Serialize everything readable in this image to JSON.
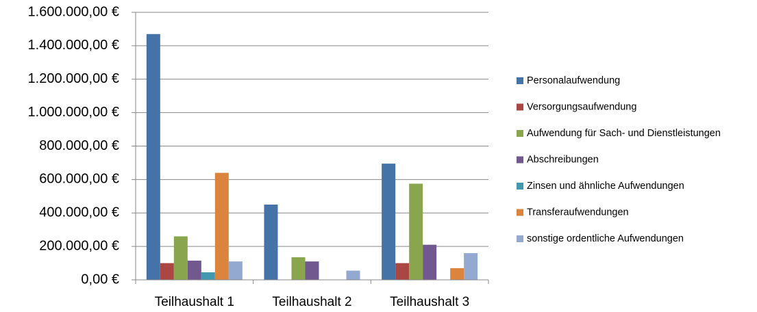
{
  "chart_data": {
    "type": "bar",
    "categories": [
      "Teilhaushalt 1",
      "Teilhaushalt 2",
      "Teilhaushalt 3"
    ],
    "series": [
      {
        "name": "Personalaufwendung",
        "color": "#4572a7",
        "values": [
          1470000,
          450000,
          695000
        ]
      },
      {
        "name": "Versorgungsaufwendung",
        "color": "#aa4643",
        "values": [
          100000,
          0,
          100000
        ]
      },
      {
        "name": "Aufwendung für Sach- und Dienstleistungen",
        "color": "#89a54e",
        "values": [
          260000,
          135000,
          575000
        ]
      },
      {
        "name": "Abschreibungen",
        "color": "#71588f",
        "values": [
          115000,
          110000,
          210000
        ]
      },
      {
        "name": "Zinsen und ähnliche Aufwendungen",
        "color": "#4198af",
        "values": [
          45000,
          0,
          0
        ]
      },
      {
        "name": "Transferaufwendungen",
        "color": "#db843d",
        "values": [
          640000,
          0,
          70000
        ]
      },
      {
        "name": "sonstige ordentliche Aufwendungen",
        "color": "#93a9cf",
        "values": [
          110000,
          55000,
          160000
        ]
      }
    ],
    "ylim": [
      0,
      1600000
    ],
    "yticks": [
      {
        "value": 0,
        "label": "0,00 €"
      },
      {
        "value": 200000,
        "label": "200.000,00 €"
      },
      {
        "value": 400000,
        "label": "400.000,00 €"
      },
      {
        "value": 600000,
        "label": "600.000,00 €"
      },
      {
        "value": 800000,
        "label": "800.000,00 €"
      },
      {
        "value": 1000000,
        "label": "1.000.000,00 €"
      },
      {
        "value": 1200000,
        "label": "1.200.000,00 €"
      },
      {
        "value": 1400000,
        "label": "1.400.000,00 €"
      },
      {
        "value": 1600000,
        "label": "1.600.000,00 €"
      }
    ],
    "grid": true,
    "legend": "right"
  }
}
